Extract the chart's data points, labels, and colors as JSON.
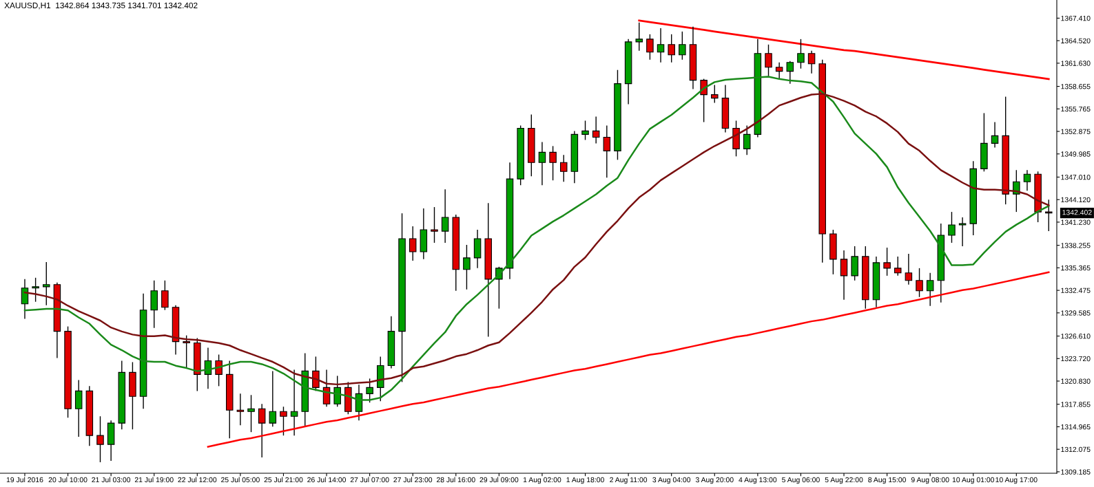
{
  "chart_data": {
    "type": "candlestick",
    "title": "XAUUSD,H1  1342.864 1343.735 1341.701 1342.402",
    "categories": [
      "19 Jul 2016",
      null,
      null,
      null,
      "20 Jul 10:00",
      null,
      null,
      null,
      "21 Jul 03:00",
      null,
      null,
      null,
      "21 Jul 19:00",
      null,
      null,
      null,
      "22 Jul 12:00",
      null,
      null,
      null,
      "25 Jul 05:00",
      null,
      null,
      null,
      "25 Jul 21:00",
      null,
      null,
      null,
      "26 Jul 14:00",
      null,
      null,
      null,
      "27 Jul 07:00",
      null,
      null,
      null,
      "27 Jul 23:00",
      null,
      null,
      null,
      "28 Jul 16:00",
      null,
      null,
      null,
      "29 Jul 09:00",
      null,
      null,
      null,
      "1 Aug 02:00",
      null,
      null,
      null,
      "1 Aug 18:00",
      null,
      null,
      null,
      "2 Aug 11:00",
      null,
      null,
      null,
      "3 Aug 04:00",
      null,
      null,
      null,
      "3 Aug 20:00",
      null,
      null,
      null,
      "4 Aug 13:00",
      null,
      null,
      null,
      "5 Aug 06:00",
      null,
      null,
      null,
      "5 Aug 22:00",
      null,
      null,
      null,
      "8 Aug 15:00",
      null,
      null,
      null,
      "9 Aug 08:00",
      null,
      null,
      null,
      "10 Aug 01:00",
      null,
      null,
      null,
      "10 Aug 17:00",
      null,
      null,
      null
    ],
    "ohlc": [
      [
        1330.74,
        1333.91,
        1328.81,
        1332.77
      ],
      [
        1332.77,
        1334.09,
        1331.01,
        1332.94
      ],
      [
        1332.94,
        1336.11,
        1330.57,
        1333.21
      ],
      [
        1333.21,
        1333.47,
        1323.79,
        1327.22
      ],
      [
        1327.22,
        1327.84,
        1316.13,
        1317.28
      ],
      [
        1317.28,
        1320.97,
        1313.67,
        1319.56
      ],
      [
        1319.56,
        1320.18,
        1312.52,
        1313.84
      ],
      [
        1313.84,
        1316.31,
        1310.41,
        1312.7
      ],
      [
        1312.7,
        1315.78,
        1310.58,
        1315.43
      ],
      [
        1315.43,
        1323.44,
        1314.63,
        1321.94
      ],
      [
        1321.94,
        1323.26,
        1314.63,
        1318.86
      ],
      [
        1318.86,
        1332.06,
        1317.28,
        1329.95
      ],
      [
        1329.95,
        1333.74,
        1327.66,
        1332.42
      ],
      [
        1332.42,
        1333.74,
        1329.95,
        1330.3
      ],
      [
        1330.3,
        1330.57,
        1324.23,
        1325.9
      ],
      [
        1325.9,
        1326.69,
        1322.47,
        1325.73
      ],
      [
        1325.73,
        1326.34,
        1319.56,
        1321.68
      ],
      [
        1321.68,
        1325.11,
        1319.83,
        1323.44
      ],
      [
        1323.44,
        1324.23,
        1320.18,
        1321.68
      ],
      [
        1321.68,
        1323.44,
        1313.49,
        1317.1
      ],
      [
        1317.1,
        1319.21,
        1315.16,
        1316.92
      ],
      [
        1316.92,
        1319.04,
        1314.28,
        1317.28
      ],
      [
        1317.28,
        1317.89,
        1311.02,
        1315.43
      ],
      [
        1315.43,
        1322.12,
        1314.99,
        1316.92
      ],
      [
        1316.92,
        1317.54,
        1313.84,
        1316.31
      ],
      [
        1316.31,
        1322.29,
        1313.84,
        1316.92
      ],
      [
        1316.92,
        1324.41,
        1314.99,
        1322.12
      ],
      [
        1322.12,
        1323.97,
        1319.56,
        1320.0
      ],
      [
        1320.0,
        1322.29,
        1317.54,
        1317.89
      ],
      [
        1317.89,
        1321.5,
        1317.54,
        1320.0
      ],
      [
        1320.0,
        1320.71,
        1316.57,
        1316.92
      ],
      [
        1316.92,
        1320.36,
        1315.78,
        1319.21
      ],
      [
        1319.21,
        1321.15,
        1318.07,
        1320.0
      ],
      [
        1320.0,
        1323.97,
        1318.24,
        1322.82
      ],
      [
        1322.82,
        1329.16,
        1322.47,
        1327.22
      ],
      [
        1327.22,
        1342.36,
        1320.71,
        1339.11
      ],
      [
        1339.11,
        1340.69,
        1336.29,
        1337.43
      ],
      [
        1337.43,
        1342.98,
        1336.47,
        1340.25
      ],
      [
        1340.25,
        1343.16,
        1338.58,
        1340.07
      ],
      [
        1340.07,
        1345.44,
        1338.58,
        1341.84
      ],
      [
        1341.84,
        1342.19,
        1332.42,
        1335.15
      ],
      [
        1335.15,
        1338.31,
        1332.59,
        1336.64
      ],
      [
        1336.64,
        1340.25,
        1335.32,
        1339.11
      ],
      [
        1339.11,
        1343.68,
        1326.52,
        1333.91
      ],
      [
        1333.91,
        1335.5,
        1330.13,
        1335.32
      ],
      [
        1335.32,
        1348.88,
        1333.91,
        1346.77
      ],
      [
        1346.77,
        1353.63,
        1345.97,
        1353.28
      ],
      [
        1353.28,
        1355.04,
        1347.12,
        1348.88
      ],
      [
        1348.88,
        1351.52,
        1345.97,
        1350.2
      ],
      [
        1350.2,
        1350.99,
        1346.59,
        1348.88
      ],
      [
        1348.88,
        1349.85,
        1346.41,
        1347.73
      ],
      [
        1347.73,
        1352.93,
        1346.24,
        1352.49
      ],
      [
        1352.49,
        1354.25,
        1351.78,
        1352.93
      ],
      [
        1352.93,
        1354.77,
        1351.34,
        1352.13
      ],
      [
        1352.13,
        1353.63,
        1346.94,
        1350.37
      ],
      [
        1350.37,
        1360.76,
        1349.23,
        1359.0
      ],
      [
        1359.0,
        1364.72,
        1356.36,
        1364.37
      ],
      [
        1364.37,
        1366.84,
        1363.23,
        1364.72
      ],
      [
        1364.72,
        1365.34,
        1362.08,
        1363.05
      ],
      [
        1363.05,
        1366.13,
        1361.73,
        1364.02
      ],
      [
        1364.02,
        1365.34,
        1361.73,
        1362.7
      ],
      [
        1362.7,
        1365.69,
        1362.08,
        1364.02
      ],
      [
        1364.02,
        1366.31,
        1358.3,
        1359.44
      ],
      [
        1359.44,
        1359.62,
        1354.07,
        1357.59
      ],
      [
        1357.59,
        1358.83,
        1356.54,
        1357.15
      ],
      [
        1357.15,
        1358.83,
        1352.75,
        1353.28
      ],
      [
        1353.28,
        1354.25,
        1349.67,
        1350.64
      ],
      [
        1350.64,
        1353.63,
        1349.85,
        1352.49
      ],
      [
        1352.49,
        1364.72,
        1352.13,
        1362.87
      ],
      [
        1362.87,
        1364.02,
        1359.97,
        1361.11
      ],
      [
        1361.11,
        1361.73,
        1359.62,
        1360.59
      ],
      [
        1360.59,
        1361.91,
        1359.0,
        1361.73
      ],
      [
        1361.73,
        1364.72,
        1360.94,
        1362.87
      ],
      [
        1362.87,
        1363.23,
        1360.32,
        1361.55
      ],
      [
        1361.55,
        1362.08,
        1336.03,
        1339.72
      ],
      [
        1339.72,
        1340.25,
        1334.53,
        1336.47
      ],
      [
        1336.47,
        1337.61,
        1331.27,
        1334.35
      ],
      [
        1334.35,
        1338.14,
        1333.74,
        1336.82
      ],
      [
        1336.82,
        1338.14,
        1330.13,
        1331.27
      ],
      [
        1331.27,
        1336.82,
        1330.3,
        1336.03
      ],
      [
        1336.03,
        1337.96,
        1334.35,
        1335.32
      ],
      [
        1335.32,
        1336.82,
        1334.35,
        1334.71
      ],
      [
        1334.71,
        1337.17,
        1333.21,
        1333.74
      ],
      [
        1333.74,
        1335.32,
        1331.62,
        1332.42
      ],
      [
        1332.42,
        1334.71,
        1330.48,
        1333.74
      ],
      [
        1333.74,
        1341.04,
        1330.92,
        1339.55
      ],
      [
        1339.55,
        1342.54,
        1338.58,
        1340.87
      ],
      [
        1340.87,
        1341.84,
        1338.14,
        1341.04
      ],
      [
        1341.04,
        1349.05,
        1339.55,
        1348.08
      ],
      [
        1348.08,
        1355.22,
        1347.73,
        1351.34
      ],
      [
        1351.34,
        1354.07,
        1350.81,
        1352.31
      ],
      [
        1352.31,
        1357.33,
        1343.51,
        1344.83
      ],
      [
        1344.83,
        1347.91,
        1342.54,
        1346.41
      ],
      [
        1346.41,
        1347.91,
        1345.27,
        1347.38
      ],
      [
        1347.38,
        1347.73,
        1341.22,
        1342.54
      ],
      [
        1342.54,
        1344.12,
        1340.07,
        1342.4
      ]
    ],
    "colors": [
      "#00a000",
      "#00a000",
      "#00a000",
      "#e00000",
      "#e00000",
      "#00a000",
      "#e00000",
      "#e00000",
      "#00a000",
      "#00a000",
      "#e00000",
      "#00a000",
      "#00a000",
      "#e00000",
      "#e00000",
      "#e00000",
      "#e00000",
      "#00a000",
      "#e00000",
      "#e00000",
      "#e00000",
      "#00a000",
      "#e00000",
      "#00a000",
      "#e00000",
      "#00a000",
      "#00a000",
      "#e00000",
      "#e00000",
      "#00a000",
      "#e00000",
      "#00a000",
      "#00a000",
      "#00a000",
      "#00a000",
      "#00a000",
      "#e00000",
      "#00a000",
      "#e00000",
      "#00a000",
      "#e00000",
      "#00a000",
      "#00a000",
      "#e00000",
      "#00a000",
      "#00a000",
      "#00a000",
      "#e00000",
      "#00a000",
      "#e00000",
      "#e00000",
      "#00a000",
      "#00a000",
      "#e00000",
      "#e00000",
      "#00a000",
      "#00a000",
      "#00a000",
      "#e00000",
      "#00a000",
      "#e00000",
      "#00a000",
      "#e00000",
      "#e00000",
      "#e00000",
      "#e00000",
      "#e00000",
      "#00a000",
      "#00a000",
      "#e00000",
      "#e00000",
      "#00a000",
      "#00a000",
      "#e00000",
      "#e00000",
      "#e00000",
      "#e00000",
      "#00a000",
      "#e00000",
      "#00a000",
      "#e00000",
      "#e00000",
      "#e00000",
      "#e00000",
      "#00a000",
      "#00a000",
      "#00a000",
      "#00a000",
      "#00a000",
      "#00a000",
      "#00a000",
      "#e00000",
      "#00a000",
      "#00a000",
      "#e00000",
      "#e00000"
    ],
    "series": [
      {
        "type": "line",
        "color": "#1a8a1a",
        "values": [
          1329.9,
          1330.0,
          1330.1,
          1330.1,
          1329.9,
          1329.0,
          1328.2,
          1326.8,
          1325.5,
          1324.8,
          1324.0,
          1323.4,
          1323.3,
          1323.3,
          1322.8,
          1322.5,
          1322.1,
          1322.3,
          1322.6,
          1323.0,
          1323.3,
          1323.3,
          1323.0,
          1322.5,
          1321.8,
          1320.9,
          1320.0,
          1319.7,
          1319.4,
          1319.2,
          1318.9,
          1318.4,
          1318.4,
          1318.7,
          1319.7,
          1321.1,
          1322.7,
          1324.2,
          1325.7,
          1327.1,
          1329.2,
          1330.7,
          1331.9,
          1333.2,
          1334.5,
          1336.0,
          1337.7,
          1339.5,
          1340.4,
          1341.3,
          1342.1,
          1343.0,
          1343.9,
          1344.8,
          1345.9,
          1346.9,
          1349.2,
          1351.3,
          1353.2,
          1354.1,
          1355.0,
          1356.1,
          1357.2,
          1358.4,
          1359.2,
          1359.5,
          1359.6,
          1359.7,
          1359.8,
          1359.9,
          1359.6,
          1359.4,
          1359.3,
          1359.1,
          1357.9,
          1356.7,
          1354.7,
          1352.6,
          1351.3,
          1350.0,
          1348.3,
          1345.7,
          1343.7,
          1341.9,
          1340.1,
          1338.0,
          1335.7,
          1335.7,
          1335.8,
          1337.3,
          1338.7,
          1340.0,
          1340.9,
          1341.7,
          1342.6,
          1343.3
        ]
      },
      {
        "type": "line",
        "color": "#7a1010",
        "values": [
          1332.2,
          1332.0,
          1331.7,
          1331.3,
          1330.5,
          1329.8,
          1329.2,
          1328.6,
          1327.7,
          1327.2,
          1326.8,
          1326.6,
          1326.6,
          1326.7,
          1326.4,
          1326.2,
          1326.1,
          1325.9,
          1325.7,
          1325.4,
          1324.8,
          1324.3,
          1323.8,
          1323.3,
          1322.6,
          1321.8,
          1321.4,
          1321.1,
          1320.5,
          1320.4,
          1320.5,
          1320.6,
          1320.7,
          1321.0,
          1321.2,
          1321.6,
          1322.5,
          1322.7,
          1323.1,
          1323.5,
          1324.0,
          1324.3,
          1324.8,
          1325.4,
          1325.8,
          1327.0,
          1328.3,
          1329.6,
          1331.0,
          1332.6,
          1333.8,
          1335.5,
          1336.7,
          1338.4,
          1340.0,
          1341.4,
          1343.0,
          1344.4,
          1345.4,
          1346.6,
          1347.5,
          1348.4,
          1349.3,
          1350.2,
          1351.0,
          1351.7,
          1352.4,
          1353.2,
          1354.1,
          1355.1,
          1356.2,
          1356.7,
          1357.2,
          1357.6,
          1357.7,
          1357.3,
          1356.8,
          1356.2,
          1355.4,
          1354.8,
          1353.9,
          1352.8,
          1351.3,
          1350.4,
          1349.1,
          1347.9,
          1347.1,
          1346.3,
          1345.6,
          1345.4,
          1345.4,
          1345.3,
          1345.2,
          1344.8,
          1344.0,
          1343.4
        ]
      },
      {
        "type": "line",
        "color": "#ff0000",
        "values": [
          null,
          null,
          null,
          null,
          null,
          null,
          null,
          null,
          null,
          null,
          null,
          null,
          null,
          null,
          null,
          null,
          null,
          1312.4,
          1312.7,
          1313.0,
          1313.3,
          1313.5,
          1313.8,
          1314.1,
          1314.4,
          1314.7,
          1315.0,
          1315.3,
          1315.6,
          1315.8,
          1316.1,
          1316.4,
          1316.7,
          1317.0,
          1317.3,
          1317.6,
          1317.9,
          1318.1,
          1318.4,
          1318.7,
          1319.0,
          1319.3,
          1319.6,
          1319.9,
          1320.1,
          1320.4,
          1320.7,
          1321.0,
          1321.3,
          1321.6,
          1321.9,
          1322.2,
          1322.4,
          1322.7,
          1323.0,
          1323.3,
          1323.6,
          1323.9,
          1324.2,
          1324.4,
          1324.7,
          1325.0,
          1325.3,
          1325.6,
          1325.9,
          1326.2,
          1326.5,
          1326.7,
          1327.0,
          1327.3,
          1327.6,
          1327.9,
          1328.2,
          1328.5,
          1328.7,
          1329.0,
          1329.3,
          1329.6,
          1329.9,
          1330.2,
          1330.5,
          1330.7,
          1331.0,
          1331.3,
          1331.6,
          1331.9,
          1332.2,
          1332.5,
          1332.7,
          1333.0,
          1333.3,
          1333.6,
          1333.9,
          1334.2,
          1334.5,
          1334.8
        ]
      },
      {
        "type": "line",
        "color": "#ff0000",
        "values": [
          null,
          null,
          null,
          null,
          null,
          null,
          null,
          null,
          null,
          null,
          null,
          null,
          null,
          null,
          null,
          null,
          null,
          null,
          null,
          null,
          null,
          null,
          null,
          null,
          null,
          null,
          null,
          null,
          null,
          null,
          null,
          null,
          null,
          null,
          null,
          null,
          null,
          null,
          null,
          null,
          null,
          null,
          null,
          null,
          null,
          null,
          null,
          null,
          null,
          null,
          null,
          null,
          null,
          null,
          null,
          null,
          null,
          1367.1,
          1366.9,
          1366.7,
          1366.5,
          1366.3,
          1366.1,
          1365.9,
          1365.7,
          1365.5,
          1365.3,
          1365.1,
          1364.9,
          1364.7,
          1364.5,
          1364.3,
          1364.1,
          1363.9,
          1363.7,
          1363.5,
          1363.3,
          1363.2,
          1363.0,
          1362.8,
          1362.6,
          1362.4,
          1362.2,
          1362.0,
          1361.8,
          1361.6,
          1361.4,
          1361.2,
          1361.0,
          1360.8,
          1360.6,
          1360.4,
          1360.2,
          1360.0,
          1359.8,
          1359.6
        ]
      }
    ],
    "annotations": [
      "1342.402"
    ],
    "ylim": [
      1309.0,
      1369.74
    ],
    "yticks": [
      {
        "value": 1367.41,
        "label": "1367.410"
      },
      {
        "value": 1364.52,
        "label": "1364.520"
      },
      {
        "value": 1361.63,
        "label": "1361.630"
      },
      {
        "value": 1358.655,
        "label": "1358.655"
      },
      {
        "value": 1355.765,
        "label": "1355.765"
      },
      {
        "value": 1352.875,
        "label": "1352.875"
      },
      {
        "value": 1349.985,
        "label": "1349.985"
      },
      {
        "value": 1347.01,
        "label": "1347.010"
      },
      {
        "value": 1344.12,
        "label": "1344.120"
      },
      {
        "value": 1341.23,
        "label": "1341.230"
      },
      {
        "value": 1338.255,
        "label": "1338.255"
      },
      {
        "value": 1335.365,
        "label": "1335.365"
      },
      {
        "value": 1332.475,
        "label": "1332.475"
      },
      {
        "value": 1329.585,
        "label": "1329.585"
      },
      {
        "value": 1326.61,
        "label": "1326.610"
      },
      {
        "value": 1323.72,
        "label": "1323.720"
      },
      {
        "value": 1320.83,
        "label": "1320.830"
      },
      {
        "value": 1317.855,
        "label": "1317.855"
      },
      {
        "value": 1314.965,
        "label": "1314.965"
      },
      {
        "value": 1312.075,
        "label": "1312.075"
      },
      {
        "value": 1309.185,
        "label": "1309.185"
      }
    ],
    "grid": false,
    "legend": false
  }
}
